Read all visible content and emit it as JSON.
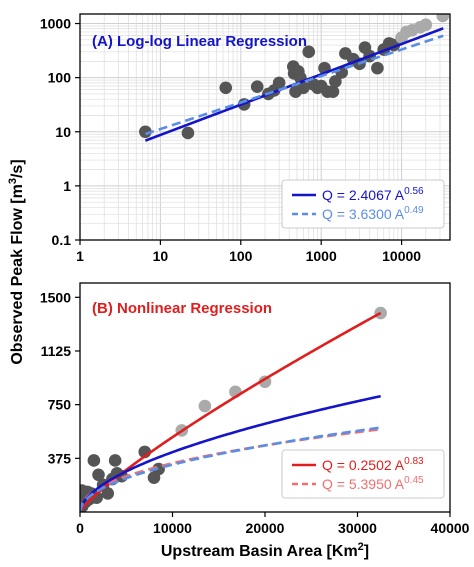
{
  "figure": {
    "ylabel": "Observed Peak Flow [m",
    "ylabel_sup": "3",
    "ylabel_tail": "/s]",
    "xlabel": "Upstream Basin Area [Km",
    "xlabel_sup": "2",
    "xlabel_tail": "]"
  },
  "colors": {
    "blue": "#1414c8",
    "light_blue": "#5a8ee6",
    "red": "#e01e1e",
    "light_red": "#f07070",
    "dark_point": "#555555",
    "light_point": "#aaaaaa",
    "grid": "#dddddd"
  },
  "chart_data": [
    {
      "type": "scatter",
      "title": "(A) Log-log Linear Regression",
      "xscale": "log",
      "yscale": "log",
      "xlim": [
        1,
        40000
      ],
      "ylim": [
        0.1,
        1500
      ],
      "x_ticks": [
        1,
        10,
        100,
        1000,
        10000
      ],
      "x_tick_labels": [
        "1",
        "10",
        "100",
        "1000",
        "10000"
      ],
      "y_ticks": [
        0.1,
        1,
        10,
        100,
        1000
      ],
      "y_tick_labels": [
        "0.1",
        "1",
        "10",
        "100",
        "1000"
      ],
      "grid": true,
      "legend_position": "bottom-right",
      "series": [
        {
          "kind": "points",
          "style": "dark",
          "x": [
            6.5,
            22,
            65,
            110,
            160,
            220,
            260,
            300,
            450,
            460,
            480,
            520,
            550,
            600,
            700,
            800,
            900,
            1000,
            1100,
            1200,
            1400,
            1500,
            1800,
            2000,
            2500,
            3000,
            3500,
            4000,
            5000,
            6000,
            7000,
            8000
          ],
          "y": [
            10,
            9.5,
            65,
            32,
            68,
            50,
            58,
            80,
            160,
            120,
            55,
            130,
            100,
            65,
            300,
            75,
            65,
            70,
            150,
            55,
            55,
            85,
            125,
            280,
            220,
            180,
            360,
            250,
            150,
            330,
            430,
            400
          ]
        },
        {
          "kind": "points",
          "style": "light",
          "x": [
            10000,
            11500,
            13500,
            17000,
            20000,
            32500
          ],
          "y": [
            550,
            700,
            750,
            850,
            950,
            1380
          ]
        },
        {
          "kind": "fit",
          "name": "Q = 2.4067 A",
          "exponent": "0.56",
          "style": "solid",
          "coef": 2.4067,
          "power": 0.56,
          "x_range": [
            6.5,
            33000
          ]
        },
        {
          "kind": "fit",
          "name": "Q = 3.6300 A",
          "exponent": "0.49",
          "style": "dashed",
          "coef": 3.63,
          "power": 0.49,
          "x_range": [
            6.5,
            33000
          ]
        }
      ]
    },
    {
      "type": "scatter",
      "title": "(B) Nonlinear Regression",
      "xscale": "linear",
      "yscale": "linear",
      "xlim": [
        0,
        40000
      ],
      "ylim": [
        0,
        1600
      ],
      "x_ticks": [
        0,
        10000,
        20000,
        30000,
        40000
      ],
      "x_tick_labels": [
        "0",
        "10000",
        "20000",
        "30000",
        "40000"
      ],
      "y_ticks": [
        375,
        750,
        1125,
        1500
      ],
      "y_tick_labels": [
        "375",
        "750",
        "1125",
        "1500"
      ],
      "grid": false,
      "legend_position": "bottom-right",
      "series": [
        {
          "kind": "points",
          "style": "dark",
          "x": [
            50,
            100,
            150,
            200,
            250,
            300,
            350,
            400,
            500,
            600,
            700,
            800,
            1000,
            1200,
            1500,
            1800,
            2000,
            2500,
            3000,
            3500,
            3800,
            4000,
            4500,
            7000,
            8000,
            8500
          ],
          "y": [
            30,
            80,
            50,
            150,
            40,
            110,
            60,
            90,
            120,
            70,
            100,
            140,
            90,
            130,
            360,
            100,
            260,
            190,
            130,
            230,
            360,
            270,
            250,
            420,
            240,
            300
          ]
        },
        {
          "kind": "points",
          "style": "light",
          "x": [
            11000,
            13500,
            16800,
            20000,
            32500
          ],
          "y": [
            570,
            740,
            840,
            910,
            1390
          ]
        },
        {
          "kind": "fit",
          "name": "Q = 0.2502 A",
          "exponent": "0.83",
          "style": "solid-red",
          "coef": 0.2502,
          "power": 0.83,
          "x_range": [
            0,
            32500
          ]
        },
        {
          "kind": "fit",
          "name": "Q = 5.3950 A",
          "exponent": "0.45",
          "style": "dashed-red",
          "coef": 5.395,
          "power": 0.45,
          "x_range": [
            0,
            32500
          ]
        },
        {
          "kind": "fit",
          "style": "solid",
          "coef": 2.4067,
          "power": 0.56,
          "x_range": [
            0,
            32500
          ]
        },
        {
          "kind": "fit",
          "style": "dashed",
          "coef": 3.63,
          "power": 0.49,
          "x_range": [
            0,
            32500
          ]
        }
      ]
    }
  ]
}
